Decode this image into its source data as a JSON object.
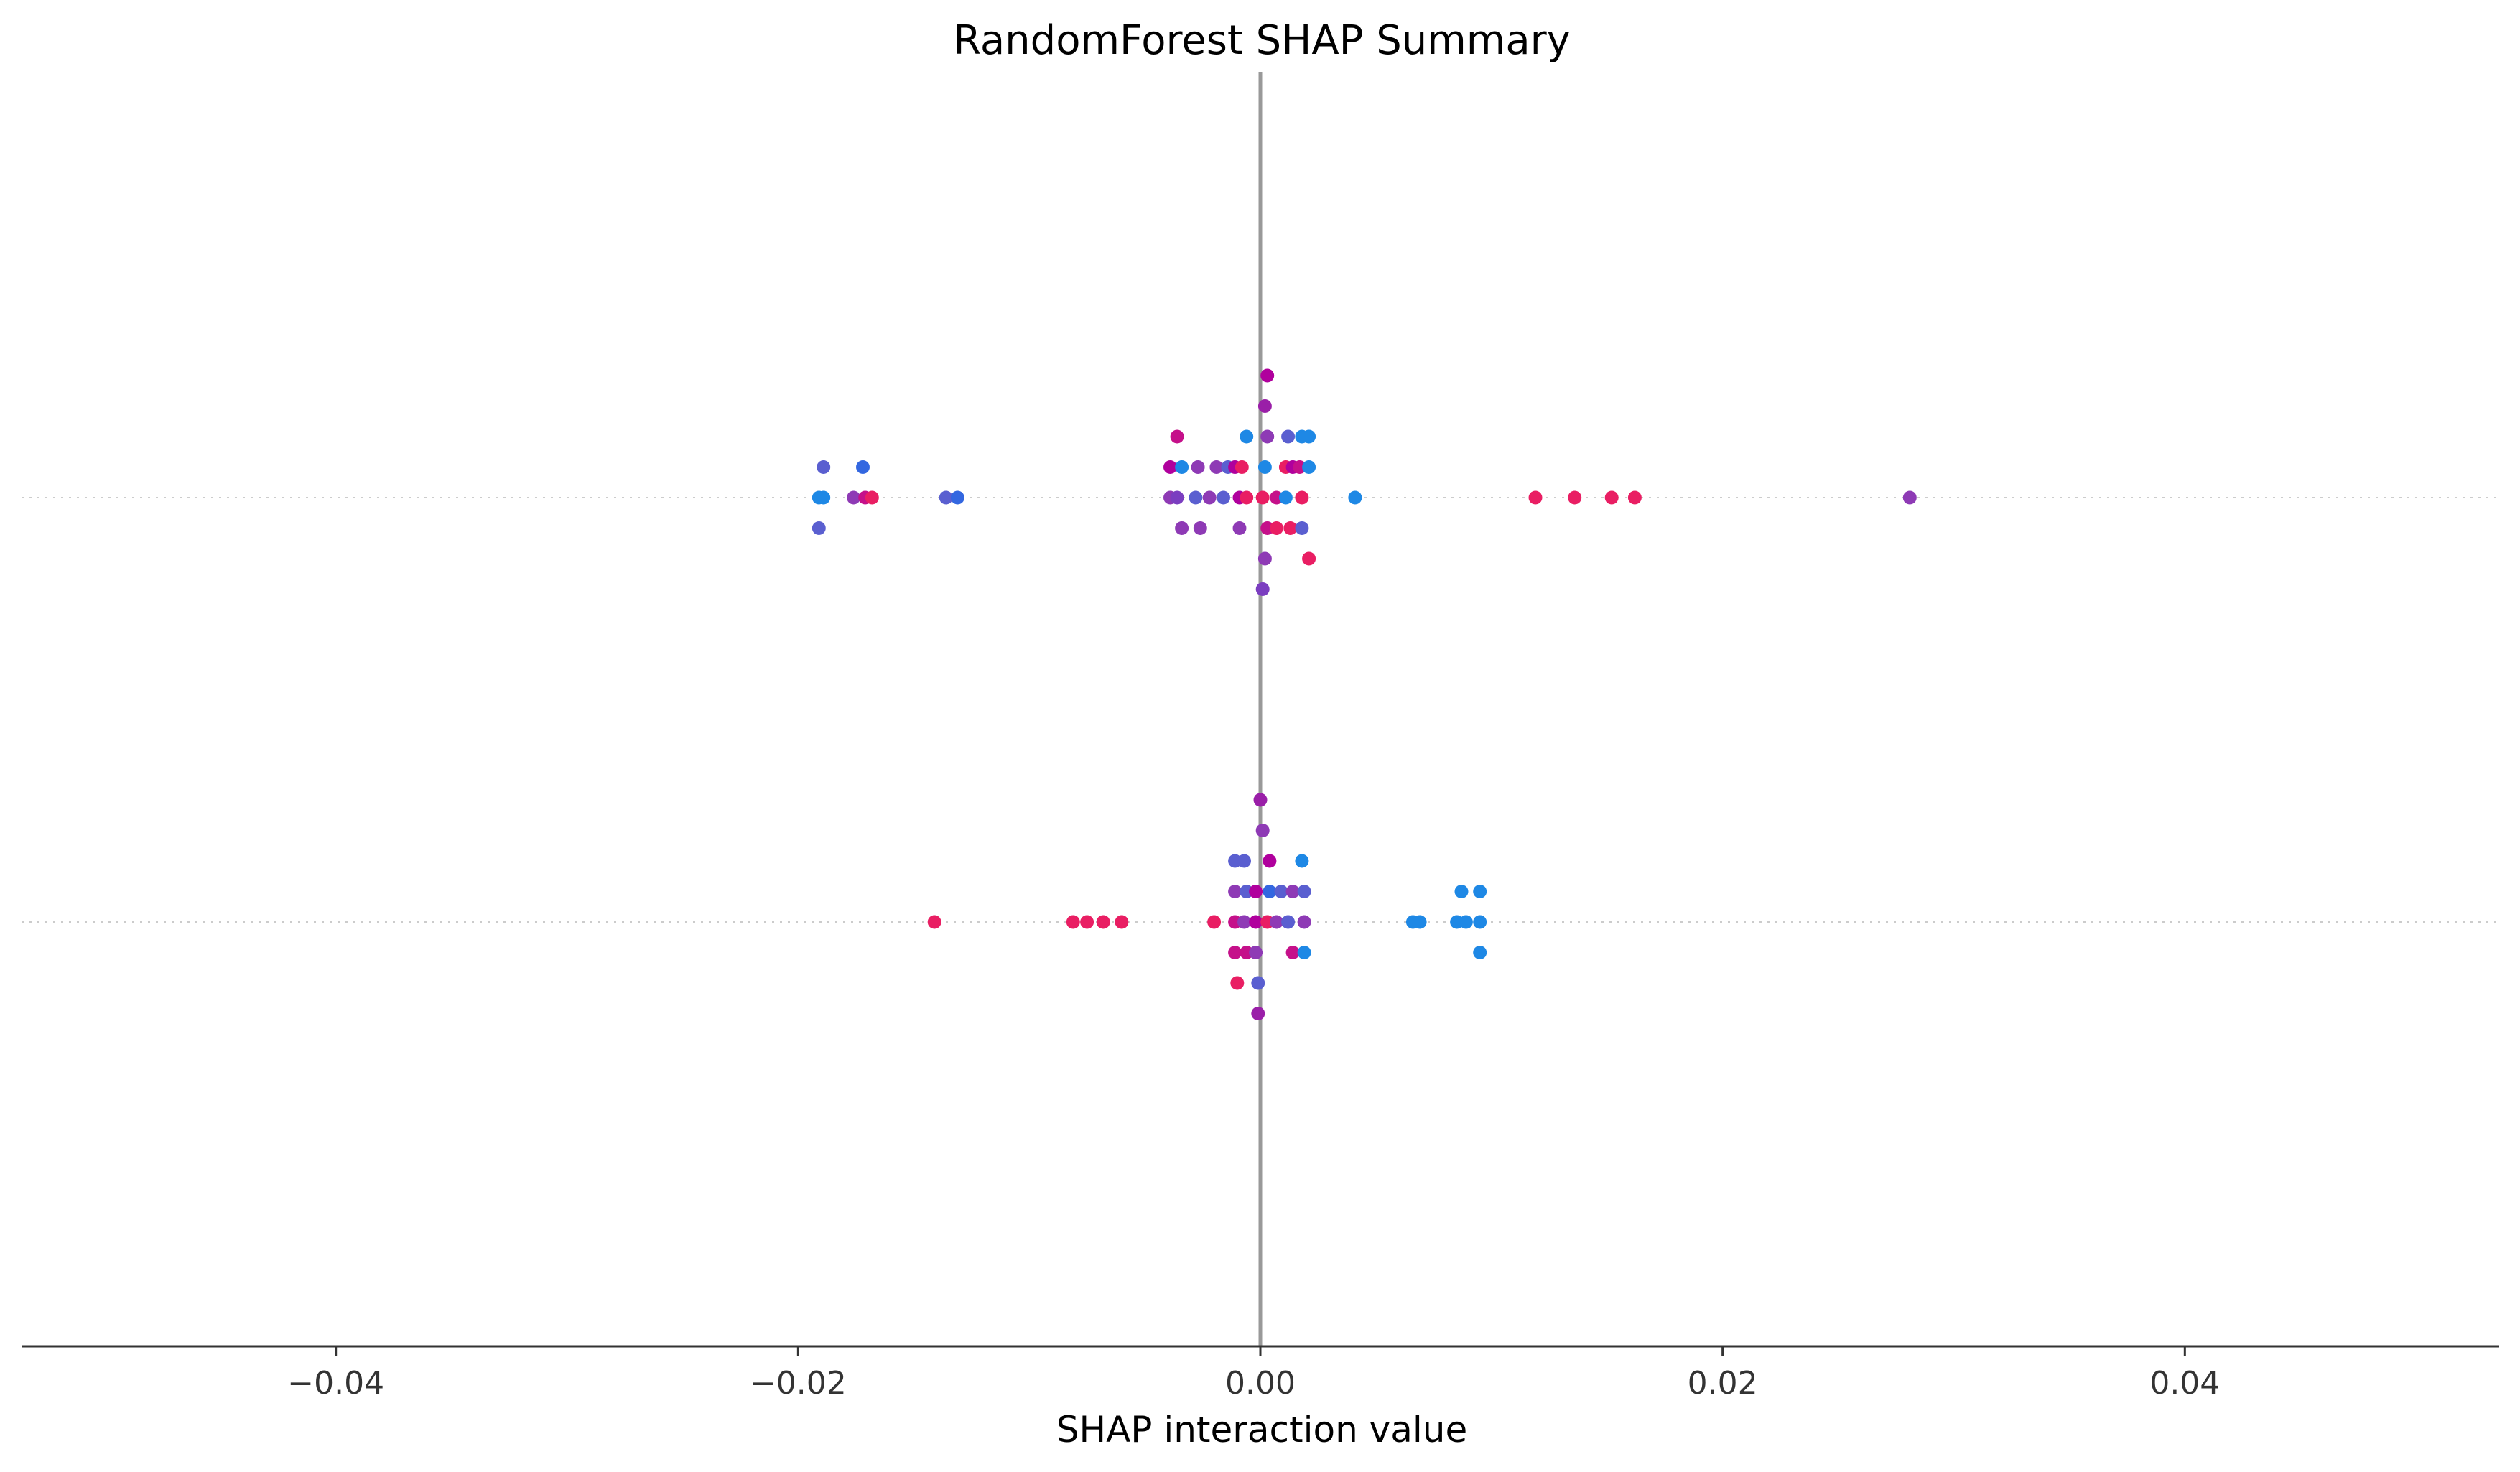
{
  "chart_data": {
    "type": "scatter",
    "title": "RandomForest SHAP Summary",
    "xlabel": "SHAP interaction value",
    "ylabel": "",
    "xlim": [
      -0.0536,
      0.0536
    ],
    "xticks": [
      {
        "value": -0.04,
        "label": "−0.04"
      },
      {
        "value": -0.02,
        "label": "−0.02"
      },
      {
        "value": 0.0,
        "label": "0.00"
      },
      {
        "value": 0.02,
        "label": "0.02"
      },
      {
        "value": 0.04,
        "label": "0.04"
      }
    ],
    "zero_line": 0.0,
    "grid": false,
    "rows": [
      {
        "points": [
          {
            "x": 0.0003,
            "level": 4,
            "color": "#b0009d"
          },
          {
            "x": 0.0002,
            "level": 3,
            "color": "#9a1fa8"
          },
          {
            "x": -0.0036,
            "level": 2,
            "color": "#c5108a"
          },
          {
            "x": -0.0006,
            "level": 2,
            "color": "#1e88e5"
          },
          {
            "x": 0.0003,
            "level": 2,
            "color": "#8e3ab5"
          },
          {
            "x": 0.0012,
            "level": 2,
            "color": "#5a5fd0"
          },
          {
            "x": 0.0018,
            "level": 2,
            "color": "#1e88e5"
          },
          {
            "x": 0.0021,
            "level": 2,
            "color": "#1e88e5"
          },
          {
            "x": -0.0189,
            "level": 1,
            "color": "#5a5fd0"
          },
          {
            "x": -0.0172,
            "level": 1,
            "color": "#3367e0"
          },
          {
            "x": -0.0039,
            "level": 1,
            "color": "#b0009d"
          },
          {
            "x": -0.0034,
            "level": 1,
            "color": "#1e88e5"
          },
          {
            "x": -0.0027,
            "level": 1,
            "color": "#8e3ab5"
          },
          {
            "x": -0.0019,
            "level": 1,
            "color": "#8e3ab5"
          },
          {
            "x": -0.0014,
            "level": 1,
            "color": "#5a5fd0"
          },
          {
            "x": -0.0011,
            "level": 1,
            "color": "#b0009d"
          },
          {
            "x": -0.0008,
            "level": 1,
            "color": "#e91e63"
          },
          {
            "x": 0.0002,
            "level": 1,
            "color": "#1e88e5"
          },
          {
            "x": 0.0011,
            "level": 1,
            "color": "#e91e63"
          },
          {
            "x": 0.0014,
            "level": 1,
            "color": "#b0009d"
          },
          {
            "x": 0.0017,
            "level": 1,
            "color": "#c5108a"
          },
          {
            "x": 0.0021,
            "level": 1,
            "color": "#1e88e5"
          },
          {
            "x": -0.0191,
            "level": 0,
            "color": "#1e88e5"
          },
          {
            "x": -0.0189,
            "level": 0,
            "color": "#1e88e5"
          },
          {
            "x": -0.0176,
            "level": 0,
            "color": "#8e3ab5"
          },
          {
            "x": -0.0171,
            "level": 0,
            "color": "#c5108a"
          },
          {
            "x": -0.0168,
            "level": 0,
            "color": "#e91e63"
          },
          {
            "x": -0.0136,
            "level": 0,
            "color": "#5a5fd0"
          },
          {
            "x": -0.0131,
            "level": 0,
            "color": "#3367e0"
          },
          {
            "x": -0.0039,
            "level": 0,
            "color": "#8e3ab5"
          },
          {
            "x": -0.0036,
            "level": 0,
            "color": "#7b3ec0"
          },
          {
            "x": -0.0028,
            "level": 0,
            "color": "#5a5fd0"
          },
          {
            "x": -0.0022,
            "level": 0,
            "color": "#8e3ab5"
          },
          {
            "x": -0.0016,
            "level": 0,
            "color": "#5a5fd0"
          },
          {
            "x": -0.0009,
            "level": 0,
            "color": "#b0009d"
          },
          {
            "x": -0.0006,
            "level": 0,
            "color": "#e91e63"
          },
          {
            "x": 0.0001,
            "level": 0,
            "color": "#e91e63"
          },
          {
            "x": 0.0007,
            "level": 0,
            "color": "#c5108a"
          },
          {
            "x": 0.0011,
            "level": 0,
            "color": "#1e88e5"
          },
          {
            "x": 0.0018,
            "level": 0,
            "color": "#e91e63"
          },
          {
            "x": 0.0041,
            "level": 0,
            "color": "#1e88e5"
          },
          {
            "x": 0.0119,
            "level": 0,
            "color": "#e91e63"
          },
          {
            "x": 0.0136,
            "level": 0,
            "color": "#e91e63"
          },
          {
            "x": 0.0152,
            "level": 0,
            "color": "#e91e63"
          },
          {
            "x": 0.0162,
            "level": 0,
            "color": "#e91e63"
          },
          {
            "x": 0.0281,
            "level": 0,
            "color": "#8e3ab5"
          },
          {
            "x": -0.0191,
            "level": -1,
            "color": "#5a5fd0"
          },
          {
            "x": -0.0034,
            "level": -1,
            "color": "#8e3ab5"
          },
          {
            "x": -0.0026,
            "level": -1,
            "color": "#8e3ab5"
          },
          {
            "x": -0.0009,
            "level": -1,
            "color": "#8e3ab5"
          },
          {
            "x": 0.0003,
            "level": -1,
            "color": "#c5108a"
          },
          {
            "x": 0.0007,
            "level": -1,
            "color": "#e91e63"
          },
          {
            "x": 0.0013,
            "level": -1,
            "color": "#e91e63"
          },
          {
            "x": 0.0018,
            "level": -1,
            "color": "#5a5fd0"
          },
          {
            "x": 0.0002,
            "level": -2,
            "color": "#8e3ab5"
          },
          {
            "x": 0.0021,
            "level": -2,
            "color": "#e91e63"
          },
          {
            "x": 0.0001,
            "level": -3,
            "color": "#7b3ec0"
          }
        ]
      },
      {
        "points": [
          {
            "x": 0.0,
            "level": 4,
            "color": "#9a1fa8"
          },
          {
            "x": 0.0001,
            "level": 3,
            "color": "#8e3ab5"
          },
          {
            "x": -0.0011,
            "level": 2,
            "color": "#5a5fd0"
          },
          {
            "x": -0.0007,
            "level": 2,
            "color": "#5a5fd0"
          },
          {
            "x": 0.0004,
            "level": 2,
            "color": "#b0009d"
          },
          {
            "x": 0.0018,
            "level": 2,
            "color": "#1e88e5"
          },
          {
            "x": -0.0011,
            "level": 1,
            "color": "#8e3ab5"
          },
          {
            "x": -0.0006,
            "level": 1,
            "color": "#5a5fd0"
          },
          {
            "x": -0.0002,
            "level": 1,
            "color": "#b0009d"
          },
          {
            "x": 0.0004,
            "level": 1,
            "color": "#3367e0"
          },
          {
            "x": 0.0009,
            "level": 1,
            "color": "#5a5fd0"
          },
          {
            "x": 0.0014,
            "level": 1,
            "color": "#8e3ab5"
          },
          {
            "x": 0.0019,
            "level": 1,
            "color": "#5a5fd0"
          },
          {
            "x": 0.0087,
            "level": 1,
            "color": "#1e88e5"
          },
          {
            "x": 0.0095,
            "level": 1,
            "color": "#1e88e5"
          },
          {
            "x": -0.0141,
            "level": 0,
            "color": "#e91e63"
          },
          {
            "x": -0.0081,
            "level": 0,
            "color": "#e91e63"
          },
          {
            "x": -0.0075,
            "level": 0,
            "color": "#e91e63"
          },
          {
            "x": -0.0068,
            "level": 0,
            "color": "#e91e63"
          },
          {
            "x": -0.006,
            "level": 0,
            "color": "#e91e63"
          },
          {
            "x": -0.002,
            "level": 0,
            "color": "#e91e63"
          },
          {
            "x": -0.0011,
            "level": 0,
            "color": "#c5108a"
          },
          {
            "x": -0.0007,
            "level": 0,
            "color": "#8e3ab5"
          },
          {
            "x": -0.0002,
            "level": 0,
            "color": "#b0009d"
          },
          {
            "x": 0.0003,
            "level": 0,
            "color": "#e91e63"
          },
          {
            "x": 0.0007,
            "level": 0,
            "color": "#8e3ab5"
          },
          {
            "x": 0.0012,
            "level": 0,
            "color": "#5a5fd0"
          },
          {
            "x": 0.0019,
            "level": 0,
            "color": "#8e3ab5"
          },
          {
            "x": 0.0066,
            "level": 0,
            "color": "#1e88e5"
          },
          {
            "x": 0.0069,
            "level": 0,
            "color": "#1e88e5"
          },
          {
            "x": 0.0085,
            "level": 0,
            "color": "#1e88e5"
          },
          {
            "x": 0.0089,
            "level": 0,
            "color": "#1e88e5"
          },
          {
            "x": 0.0095,
            "level": 0,
            "color": "#1e88e5"
          },
          {
            "x": -0.0011,
            "level": -1,
            "color": "#c5108a"
          },
          {
            "x": -0.0006,
            "level": -1,
            "color": "#c5108a"
          },
          {
            "x": -0.0002,
            "level": -1,
            "color": "#8e3ab5"
          },
          {
            "x": 0.0014,
            "level": -1,
            "color": "#c5108a"
          },
          {
            "x": 0.0019,
            "level": -1,
            "color": "#1e88e5"
          },
          {
            "x": 0.0095,
            "level": -1,
            "color": "#1e88e5"
          },
          {
            "x": -0.001,
            "level": -2,
            "color": "#e91e63"
          },
          {
            "x": -0.0001,
            "level": -2,
            "color": "#5a5fd0"
          },
          {
            "x": -0.0001,
            "level": -3,
            "color": "#9a1fa8"
          }
        ]
      }
    ]
  }
}
